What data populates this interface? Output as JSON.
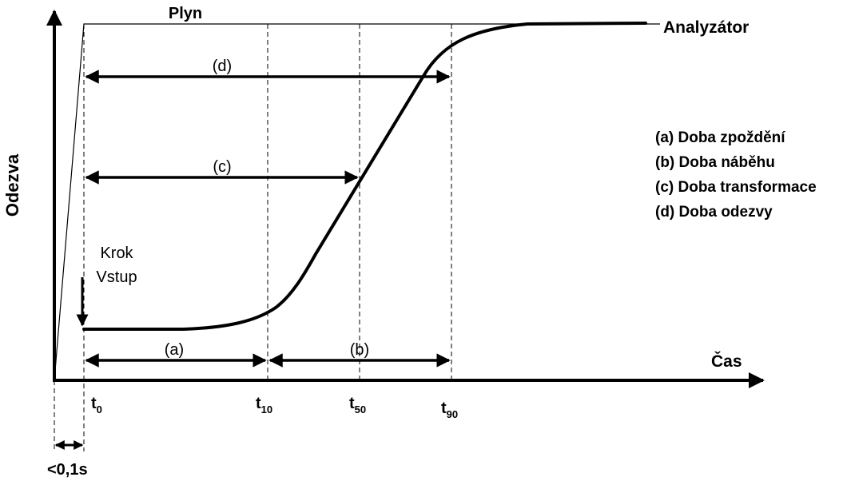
{
  "diagram": {
    "y_axis_label": "Odezva",
    "x_axis_label": "Čas",
    "gas_label": "Plyn",
    "analyzer_label": "Analyzátor",
    "step_label_1": "Krok",
    "step_label_2": "Vstup",
    "offset_label": "<0,1s",
    "ticks": [
      {
        "main": "t",
        "sub": "0"
      },
      {
        "main": "t",
        "sub": "10"
      },
      {
        "main": "t",
        "sub": "50"
      },
      {
        "main": "t",
        "sub": "90"
      }
    ],
    "spans": {
      "a": "(a)",
      "b": "(b)",
      "c": "(c)",
      "d": "(d)"
    },
    "legend": [
      "(a)  Doba zpoždění",
      "(b)  Doba náběhu",
      "(c)  Doba transformace",
      "(d)  Doba odezvy"
    ]
  }
}
